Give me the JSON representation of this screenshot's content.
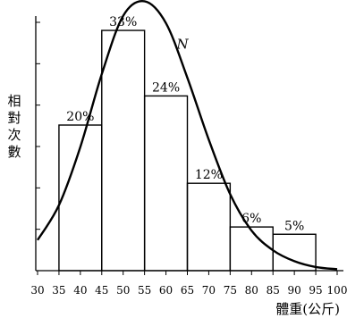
{
  "chart_data": {
    "type": "bar",
    "title": "",
    "xlabel": "體重(公斤)",
    "ylabel": "相對次數",
    "xlim": [
      30,
      100
    ],
    "x_ticks": [
      30,
      35,
      40,
      45,
      50,
      55,
      60,
      65,
      70,
      75,
      80,
      85,
      90,
      95,
      100
    ],
    "y_tick_count": 6,
    "bins": [
      {
        "from": 35,
        "to": 45,
        "value": 20,
        "label": "20%"
      },
      {
        "from": 45,
        "to": 55,
        "value": 33,
        "label": "33%"
      },
      {
        "from": 55,
        "to": 65,
        "value": 24,
        "label": "24%"
      },
      {
        "from": 65,
        "to": 75,
        "value": 12,
        "label": "12%"
      },
      {
        "from": 75,
        "to": 85,
        "value": 6,
        "label": "6%"
      },
      {
        "from": 85,
        "to": 95,
        "value": 5,
        "label": "5%"
      }
    ],
    "curve": {
      "name": "N",
      "points": [
        [
          30,
          4.2
        ],
        [
          35,
          9
        ],
        [
          40,
          17
        ],
        [
          45,
          27
        ],
        [
          50,
          35
        ],
        [
          55,
          37
        ],
        [
          60,
          34
        ],
        [
          65,
          26.5
        ],
        [
          70,
          18
        ],
        [
          75,
          10.5
        ],
        [
          80,
          5.5
        ],
        [
          85,
          2.8
        ],
        [
          90,
          1.3
        ],
        [
          95,
          0.5
        ],
        [
          100,
          0.2
        ]
      ]
    },
    "grid": false
  }
}
